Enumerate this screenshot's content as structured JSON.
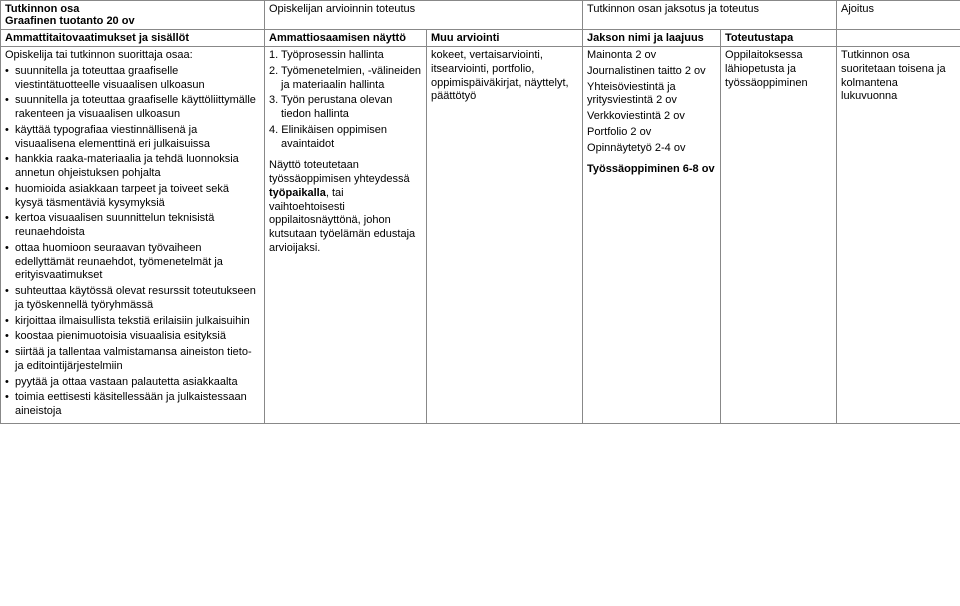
{
  "header": {
    "col1_line1": "Tutkinnon osa",
    "col1_line2": "Graafinen tuotanto 20 ov",
    "col2": "Opiskelijan arvioinnin toteutus",
    "col3": "Tutkinnon osan jaksotus ja toteutus",
    "col4": "Ajoitus"
  },
  "subheader": {
    "c1": "Ammattitaitovaatimukset ja sisällöt",
    "c2": "Ammattiosaamisen näyttö",
    "c3": "Muu arviointi",
    "c4": "Jakson nimi ja laajuus",
    "c5": "Toteutustapa"
  },
  "col1": {
    "intro": "Opiskelija tai tutkinnon suorittaja osaa:",
    "items": [
      "suunnitella ja toteuttaa graafiselle viestintätuotteelle visuaalisen ulkoasun",
      "suunnitella ja toteuttaa graafiselle käyttöliittymälle rakenteen ja visuaalisen ulkoasun",
      "käyttää typografiaa viestinnällisenä ja visuaalisena elementtinä eri julkaisuissa",
      "hankkia raaka-materiaalia ja tehdä luonnoksia annetun ohjeistuksen pohjalta",
      "huomioida asiakkaan tarpeet ja toiveet sekä kysyä täsmentäviä kysymyksiä",
      "kertoa visuaalisen suunnittelun teknisistä reunaehdoista",
      "ottaa huomioon seuraavan työvaiheen edellyttämät reunaehdot, työmenetelmät ja erityisvaatimukset",
      "suhteuttaa käytössä olevat resurssit toteutukseen ja työskennellä työryhmässä",
      "kirjoittaa ilmaisullista tekstiä erilaisiin julkaisuihin",
      "koostaa pienimuotoisia visuaalisia esityksiä",
      "siirtää ja tallentaa valmistamansa aineiston tieto- ja editointijärjestelmiin",
      "pyytää ja ottaa vastaan palautetta asiakkaalta",
      "toimia eettisesti käsitellessään ja julkaistessaan aineistoja"
    ]
  },
  "col2": {
    "ol": [
      "1. Työprosessin hallinta",
      "2. Työmenetelmien, -välineiden ja materiaalin hallinta",
      "3. Työn perustana olevan tiedon hallinta",
      "4. Elinikäisen oppimisen avaintaidot"
    ],
    "p1": "Näyttö toteutetaan työssäoppimisen yhteydessä ",
    "p1b": "työpaikalla",
    "p1c": ", tai vaihtoehtoisesti oppilaitosnäyttönä, johon kutsutaan työelämän edustaja arvioijaksi."
  },
  "col3": {
    "text": "kokeet, vertaisarviointi, itsearviointi, portfolio, oppimispäiväkirjat, näyttelyt, päättötyö"
  },
  "col4": {
    "lines": [
      "Mainonta 2 ov",
      "Journalistinen taitto 2 ov",
      "Yhteisöviestintä ja yritysviestintä 2 ov",
      "Verkkoviestintä 2 ov",
      "Portfolio 2 ov",
      "Opinnäytetyö 2-4  ov"
    ],
    "bold": "Työssäoppiminen 6-8 ov"
  },
  "col5": {
    "text": "Oppilaitoksessa lähiopetusta ja työssäoppiminen"
  },
  "col6": {
    "text": "Tutkinnon osa suoritetaan toisena ja kolmantena lukuvuonna"
  }
}
